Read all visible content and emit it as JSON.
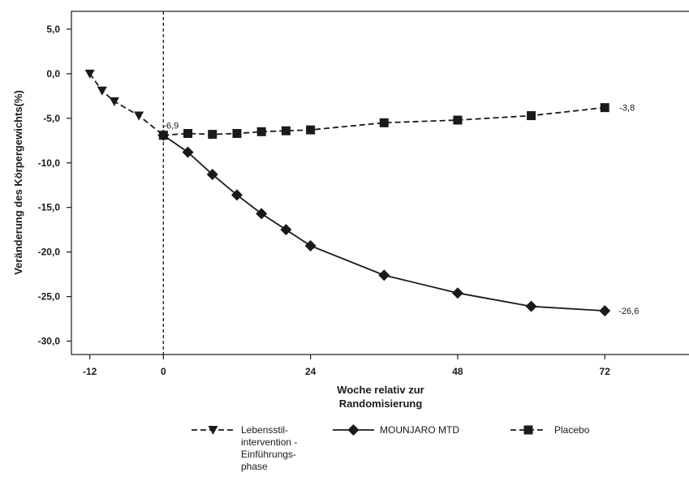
{
  "chart_data": {
    "type": "line",
    "title": "",
    "xlabel_lines": [
      "Woche relativ zur",
      "Randomisierung"
    ],
    "ylabel": "Veränderung des Körpergewichts(%)",
    "xlim": [
      -15,
      86
    ],
    "ylim": [
      -31.5,
      7
    ],
    "x_ticks": [
      -12,
      0,
      24,
      48,
      72
    ],
    "x_tick_labels": [
      "-12",
      "0",
      "24",
      "48",
      "72"
    ],
    "y_ticks": [
      5,
      0,
      -5,
      -10,
      -15,
      -20,
      -25,
      -30
    ],
    "y_tick_labels": [
      "5,0",
      "0,0",
      "-5,0",
      "-10,0",
      "-15,0",
      "-20,0",
      "-25,0",
      "-30,0"
    ],
    "vertical_reference_x": 0,
    "grid": false,
    "series": [
      {
        "name_lines": [
          "Lebensstil-",
          "intervention -",
          "Einführungs-",
          "phase"
        ],
        "marker": "triangle-down",
        "line_style": "dashed",
        "color": "#1a1a1a",
        "x": [
          -12,
          -10,
          -8,
          -4,
          0
        ],
        "y": [
          0.0,
          -1.9,
          -3.1,
          -4.7,
          -6.9
        ]
      },
      {
        "name_lines": [
          "MOUNJARO MTD"
        ],
        "marker": "diamond",
        "line_style": "solid",
        "color": "#1a1a1a",
        "x": [
          0,
          4,
          8,
          12,
          16,
          20,
          24,
          36,
          48,
          60,
          72
        ],
        "y": [
          -6.9,
          -8.8,
          -11.3,
          -13.6,
          -15.7,
          -17.5,
          -19.3,
          -22.6,
          -24.6,
          -26.1,
          -26.6
        ]
      },
      {
        "name_lines": [
          "Placebo"
        ],
        "marker": "square",
        "line_style": "dashed",
        "color": "#1a1a1a",
        "x": [
          0,
          4,
          8,
          12,
          16,
          20,
          24,
          36,
          48,
          60,
          72
        ],
        "y": [
          -6.9,
          -6.7,
          -6.8,
          -6.7,
          -6.5,
          -6.4,
          -6.3,
          -5.5,
          -5.2,
          -4.7,
          -3.8
        ]
      }
    ],
    "annotations": [
      {
        "text": "-6,9",
        "x": 0,
        "y": -6.9
      },
      {
        "text": "-3,8",
        "x": 72,
        "y": -3.8
      },
      {
        "text": "-26,6",
        "x": 72,
        "y": -26.6
      }
    ],
    "legend_position": "bottom-center"
  }
}
